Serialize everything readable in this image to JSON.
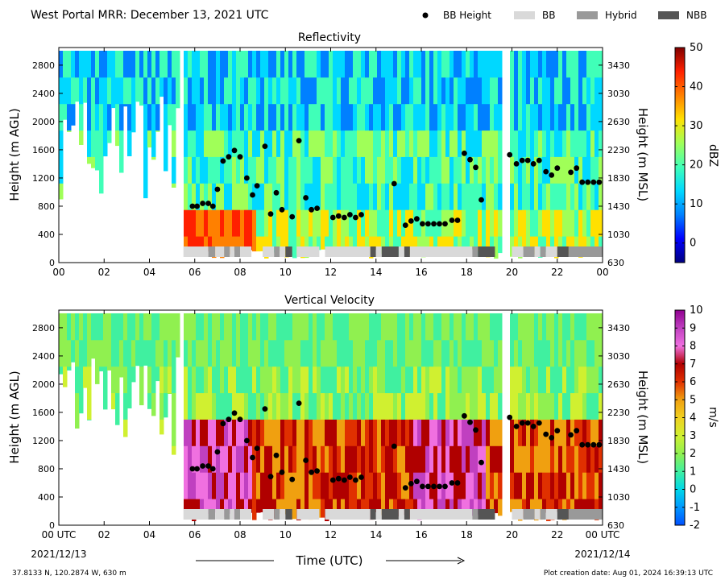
{
  "figure": {
    "title": "West Portal MRR:  December 13, 2021 UTC",
    "legend": [
      {
        "label": "BB Height",
        "kind": "dot",
        "color": "#000000"
      },
      {
        "label": "BB",
        "kind": "box",
        "color": "#d9d9d9"
      },
      {
        "label": "Hybrid",
        "kind": "box",
        "color": "#999999"
      },
      {
        "label": "NBB",
        "kind": "box",
        "color": "#555555"
      }
    ],
    "location": "37.8133 N, 120.2874 W, 630 m",
    "creation": "Plot creation date: Aug 01, 2024 16:39:13 UTC",
    "xlabel": "Time (UTC)",
    "start_date": "2021/12/13",
    "end_date": "2021/12/14"
  },
  "chart_data": [
    {
      "type": "heatmap",
      "title": "Reflectivity",
      "ylabel": "Height (m AGL)",
      "y2label": "Height (m MSL)",
      "colorbar_label": "dBZ",
      "xlim": [
        0,
        24
      ],
      "ylim": [
        0,
        3050
      ],
      "x_ticks": [
        "00",
        "02",
        "04",
        "06",
        "08",
        "10",
        "12",
        "14",
        "16",
        "18",
        "20",
        "22",
        "00"
      ],
      "y_ticks": [
        0,
        400,
        800,
        1200,
        1600,
        2000,
        2400,
        2800
      ],
      "y2_ticks": [
        630,
        1030,
        1430,
        1830,
        2230,
        2630,
        3030,
        3430
      ],
      "colorbar_range": [
        -5,
        50
      ],
      "colorbar_ticks": [
        0,
        10,
        20,
        30,
        40,
        50
      ]
    },
    {
      "type": "heatmap",
      "title": "Vertical Velocity",
      "ylabel": "Height (m AGL)",
      "y2label": "Height (m MSL)",
      "colorbar_label": "m/s",
      "xlim": [
        0,
        24
      ],
      "ylim": [
        0,
        3050
      ],
      "x_ticks": [
        "00 UTC",
        "02",
        "04",
        "06",
        "08",
        "10",
        "12",
        "14",
        "16",
        "18",
        "20",
        "22",
        "00 UTC"
      ],
      "y_ticks": [
        0,
        400,
        800,
        1200,
        1600,
        2000,
        2400,
        2800
      ],
      "y2_ticks": [
        630,
        1030,
        1430,
        1830,
        2230,
        2630,
        3030,
        3430
      ],
      "colorbar_range": [
        -2,
        10
      ],
      "colorbar_ticks": [
        -2,
        -1,
        0,
        1,
        2,
        3,
        4,
        5,
        6,
        7,
        8,
        9,
        10
      ]
    }
  ],
  "bb_height": {
    "series": "BB Height",
    "points": [
      [
        5.9,
        800
      ],
      [
        6.1,
        800
      ],
      [
        6.35,
        840
      ],
      [
        6.6,
        840
      ],
      [
        6.8,
        800
      ],
      [
        7.0,
        1040
      ],
      [
        7.25,
        1440
      ],
      [
        7.5,
        1500
      ],
      [
        7.75,
        1590
      ],
      [
        8.0,
        1500
      ],
      [
        8.3,
        1200
      ],
      [
        8.55,
        960
      ],
      [
        8.75,
        1090
      ],
      [
        9.1,
        1650
      ],
      [
        9.35,
        690
      ],
      [
        9.6,
        990
      ],
      [
        9.85,
        750
      ],
      [
        10.3,
        650
      ],
      [
        10.6,
        1730
      ],
      [
        10.9,
        920
      ],
      [
        11.15,
        750
      ],
      [
        11.4,
        770
      ],
      [
        12.1,
        640
      ],
      [
        12.35,
        660
      ],
      [
        12.6,
        640
      ],
      [
        12.85,
        680
      ],
      [
        13.1,
        640
      ],
      [
        13.35,
        680
      ],
      [
        14.8,
        1120
      ],
      [
        15.3,
        530
      ],
      [
        15.55,
        590
      ],
      [
        15.8,
        620
      ],
      [
        16.05,
        550
      ],
      [
        16.3,
        550
      ],
      [
        16.55,
        550
      ],
      [
        16.8,
        550
      ],
      [
        17.05,
        550
      ],
      [
        17.35,
        600
      ],
      [
        17.6,
        600
      ],
      [
        17.9,
        1550
      ],
      [
        18.15,
        1460
      ],
      [
        18.4,
        1350
      ],
      [
        18.65,
        890
      ],
      [
        19.9,
        1530
      ],
      [
        20.2,
        1400
      ],
      [
        20.45,
        1450
      ],
      [
        20.7,
        1450
      ],
      [
        20.95,
        1400
      ],
      [
        21.2,
        1450
      ],
      [
        21.5,
        1290
      ],
      [
        21.75,
        1240
      ],
      [
        22.0,
        1340
      ],
      [
        22.6,
        1280
      ],
      [
        22.85,
        1340
      ],
      [
        23.1,
        1140
      ],
      [
        23.35,
        1140
      ],
      [
        23.6,
        1140
      ],
      [
        23.85,
        1140
      ]
    ]
  },
  "bb_classification": [
    {
      "start": 5.5,
      "end": 6.6,
      "class": "BB"
    },
    {
      "start": 6.6,
      "end": 6.9,
      "class": "Hybrid"
    },
    {
      "start": 6.9,
      "end": 7.3,
      "class": "BB"
    },
    {
      "start": 7.3,
      "end": 7.55,
      "class": "Hybrid"
    },
    {
      "start": 7.55,
      "end": 7.75,
      "class": "BB"
    },
    {
      "start": 7.75,
      "end": 8.0,
      "class": "Hybrid"
    },
    {
      "start": 8.0,
      "end": 8.5,
      "class": "BB"
    },
    {
      "start": 9.0,
      "end": 9.5,
      "class": "BB"
    },
    {
      "start": 9.5,
      "end": 9.75,
      "class": "Hybrid"
    },
    {
      "start": 9.75,
      "end": 10.0,
      "class": "BB"
    },
    {
      "start": 10.0,
      "end": 10.3,
      "class": "NBB"
    },
    {
      "start": 10.5,
      "end": 11.5,
      "class": "BB"
    },
    {
      "start": 11.75,
      "end": 13.75,
      "class": "BB"
    },
    {
      "start": 13.75,
      "end": 14.0,
      "class": "NBB"
    },
    {
      "start": 14.0,
      "end": 14.25,
      "class": "BB"
    },
    {
      "start": 14.25,
      "end": 15.0,
      "class": "NBB"
    },
    {
      "start": 15.0,
      "end": 15.25,
      "class": "BB"
    },
    {
      "start": 15.25,
      "end": 15.5,
      "class": "NBB"
    },
    {
      "start": 15.5,
      "end": 18.25,
      "class": "BB"
    },
    {
      "start": 18.25,
      "end": 18.5,
      "class": "Hybrid"
    },
    {
      "start": 18.5,
      "end": 19.25,
      "class": "NBB"
    },
    {
      "start": 20.0,
      "end": 20.5,
      "class": "BB"
    },
    {
      "start": 20.5,
      "end": 21.0,
      "class": "Hybrid"
    },
    {
      "start": 21.0,
      "end": 21.25,
      "class": "BB"
    },
    {
      "start": 21.25,
      "end": 21.5,
      "class": "Hybrid"
    },
    {
      "start": 21.5,
      "end": 22.0,
      "class": "BB"
    },
    {
      "start": 22.0,
      "end": 22.5,
      "class": "NBB"
    },
    {
      "start": 22.5,
      "end": 24.0,
      "class": "Hybrid"
    }
  ],
  "data_gaps": [
    [
      5.2,
      5.5
    ],
    [
      19.4,
      19.8
    ]
  ],
  "classification_colors": {
    "BB": "#d9d9d9",
    "Hybrid": "#999999",
    "NBB": "#555555"
  },
  "colormaps": {
    "reflectivity": [
      "#00007f",
      "#0000ff",
      "#0080ff",
      "#00d8ff",
      "#40ffb8",
      "#a0ff58",
      "#ffe000",
      "#ff8000",
      "#ff2000",
      "#7f0000"
    ],
    "velocity": [
      "#0050ff",
      "#0098ff",
      "#00d8e8",
      "#40f0a0",
      "#90f050",
      "#d0f030",
      "#f0d020",
      "#f0a010",
      "#e03000",
      "#b00000",
      "#f070e0",
      "#c040c0",
      "#900090"
    ]
  }
}
